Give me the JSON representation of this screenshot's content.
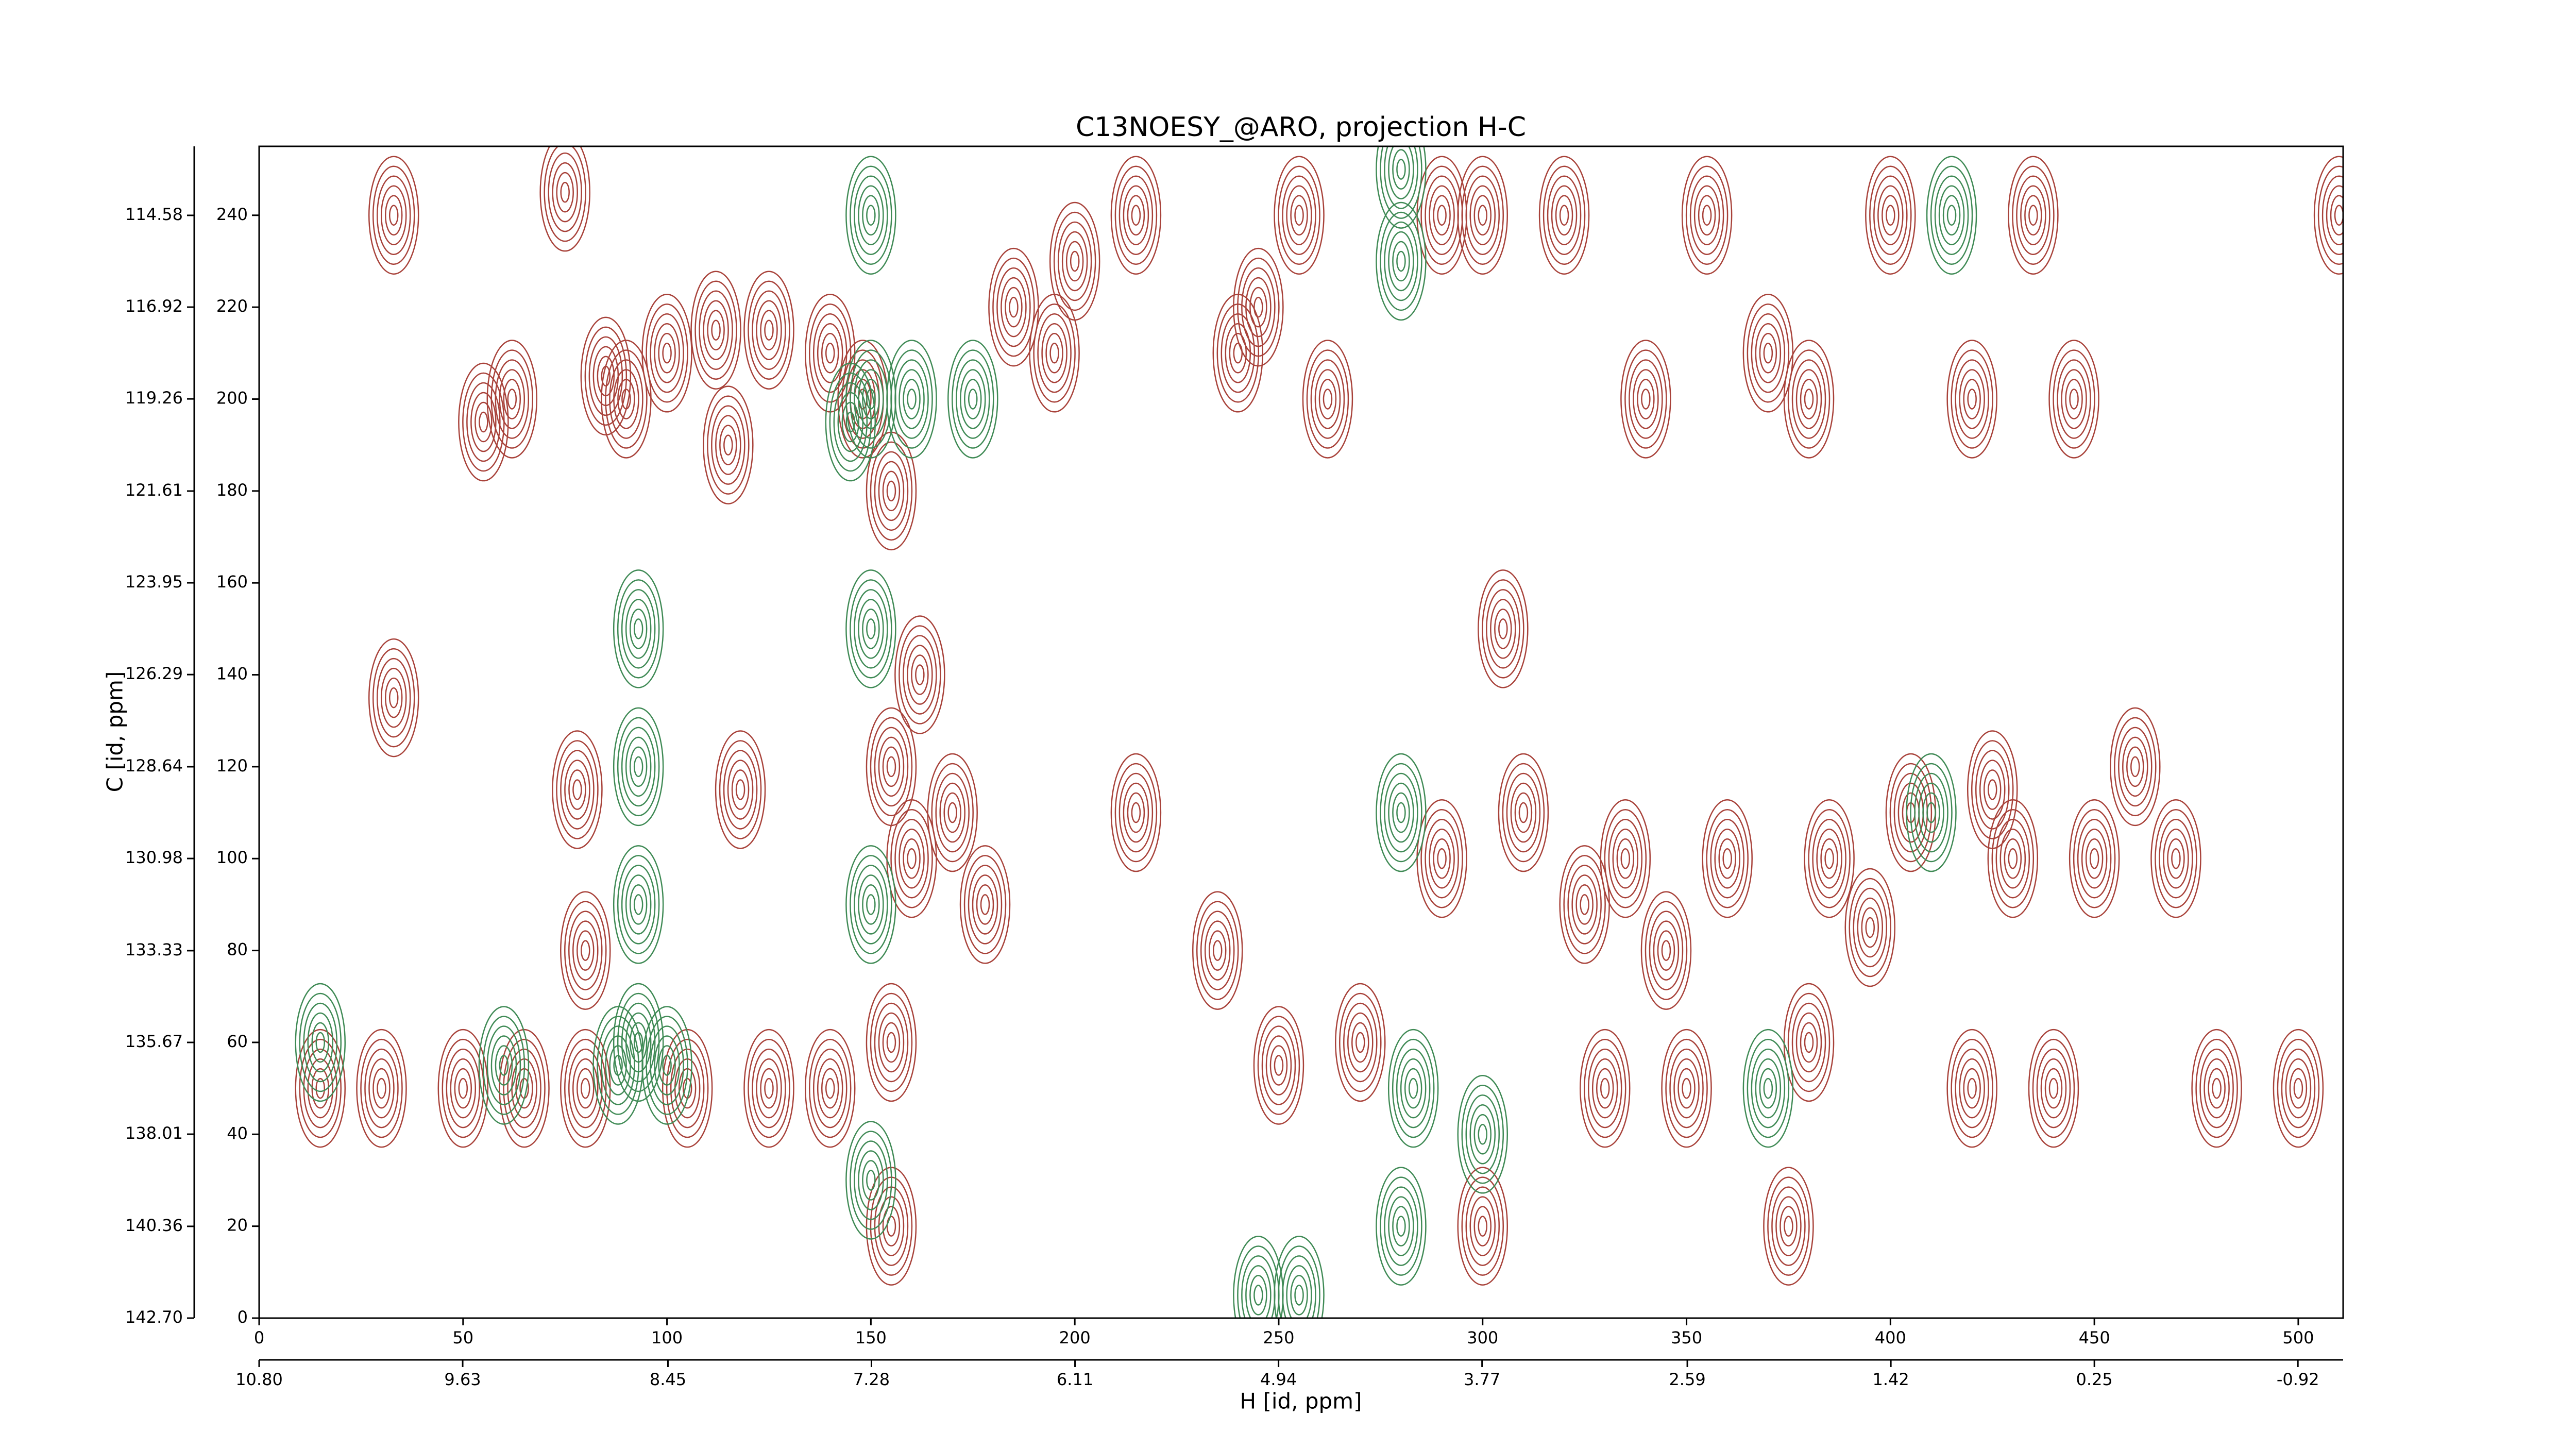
{
  "chart_data": {
    "type": "contour",
    "title": "C13NOESY_@ARO, projection H-C",
    "xlabel": "H [id, ppm]",
    "ylabel": "C [id, ppm]",
    "xlim": [
      0,
      511
    ],
    "ylim": [
      0,
      255
    ],
    "xticks": [
      0,
      50,
      100,
      150,
      200,
      250,
      300,
      350,
      400,
      450,
      500
    ],
    "yticks": [
      0,
      20,
      40,
      60,
      80,
      100,
      120,
      140,
      160,
      180,
      200,
      220,
      240
    ],
    "x2lim": [
      10.8,
      -1.18
    ],
    "x2ticks": [
      {
        "value": 10.8,
        "label": "10.80"
      },
      {
        "value": 9.63,
        "label": "9.63"
      },
      {
        "value": 8.45,
        "label": "8.45"
      },
      {
        "value": 7.28,
        "label": "7.28"
      },
      {
        "value": 6.11,
        "label": "6.11"
      },
      {
        "value": 4.94,
        "label": "4.94"
      },
      {
        "value": 3.77,
        "label": "3.77"
      },
      {
        "value": 2.59,
        "label": "2.59"
      },
      {
        "value": 1.42,
        "label": "1.42"
      },
      {
        "value": 0.25,
        "label": "0.25"
      },
      {
        "value": -0.92,
        "label": "-0.92"
      }
    ],
    "y2lim": [
      142.7,
      112.82
    ],
    "y2ticks": [
      {
        "value": 142.7,
        "label": "142.70"
      },
      140.36,
      138.01,
      135.67,
      133.33,
      130.98,
      128.64,
      126.29,
      123.95,
      121.61,
      119.26,
      116.92,
      114.58
    ],
    "series": [
      {
        "color": "#a8423a",
        "x": [
          33,
          33,
          55,
          62,
          75,
          78,
          80,
          85,
          90,
          100,
          112,
          115,
          118,
          125,
          140,
          148,
          155,
          160,
          162,
          170,
          178,
          185,
          215,
          215,
          235,
          240,
          245,
          255,
          262,
          290,
          300,
          305,
          310,
          320,
          325,
          335,
          340,
          345,
          355,
          360,
          370,
          380,
          385,
          395,
          400,
          405,
          420,
          425,
          430,
          435,
          445,
          450,
          460,
          470,
          15,
          30,
          50,
          65,
          80,
          105,
          125,
          140,
          250,
          270,
          330,
          350,
          380,
          420,
          440,
          480,
          500,
          510,
          290,
          300,
          375,
          195,
          200,
          155,
          155,
          155
        ],
        "y": [
          240,
          135,
          195,
          200,
          245,
          115,
          80,
          205,
          200,
          210,
          215,
          190,
          115,
          215,
          210,
          200,
          120,
          100,
          140,
          110,
          90,
          220,
          240,
          110,
          80,
          210,
          220,
          240,
          200,
          240,
          240,
          150,
          110,
          240,
          90,
          100,
          200,
          80,
          240,
          100,
          210,
          200,
          100,
          85,
          240,
          110,
          200,
          115,
          100,
          240,
          200,
          100,
          120,
          100,
          50,
          50,
          50,
          50,
          50,
          50,
          50,
          50,
          55,
          60,
          50,
          50,
          60,
          50,
          50,
          50,
          50,
          240,
          100,
          20,
          20,
          210,
          230,
          180,
          60,
          20
        ]
      },
      {
        "color": "#3f8a55",
        "x": [
          93,
          93,
          93,
          93,
          88,
          100,
          150,
          150,
          150,
          150,
          150,
          145,
          160,
          175,
          280,
          280,
          280,
          283,
          280,
          300,
          415,
          370,
          410,
          15,
          60,
          245,
          255
        ],
        "y": [
          60,
          90,
          120,
          150,
          55,
          55,
          240,
          200,
          150,
          90,
          30,
          195,
          200,
          200,
          250,
          230,
          110,
          50,
          20,
          40,
          240,
          50,
          110,
          60,
          55,
          5,
          5
        ]
      }
    ]
  }
}
